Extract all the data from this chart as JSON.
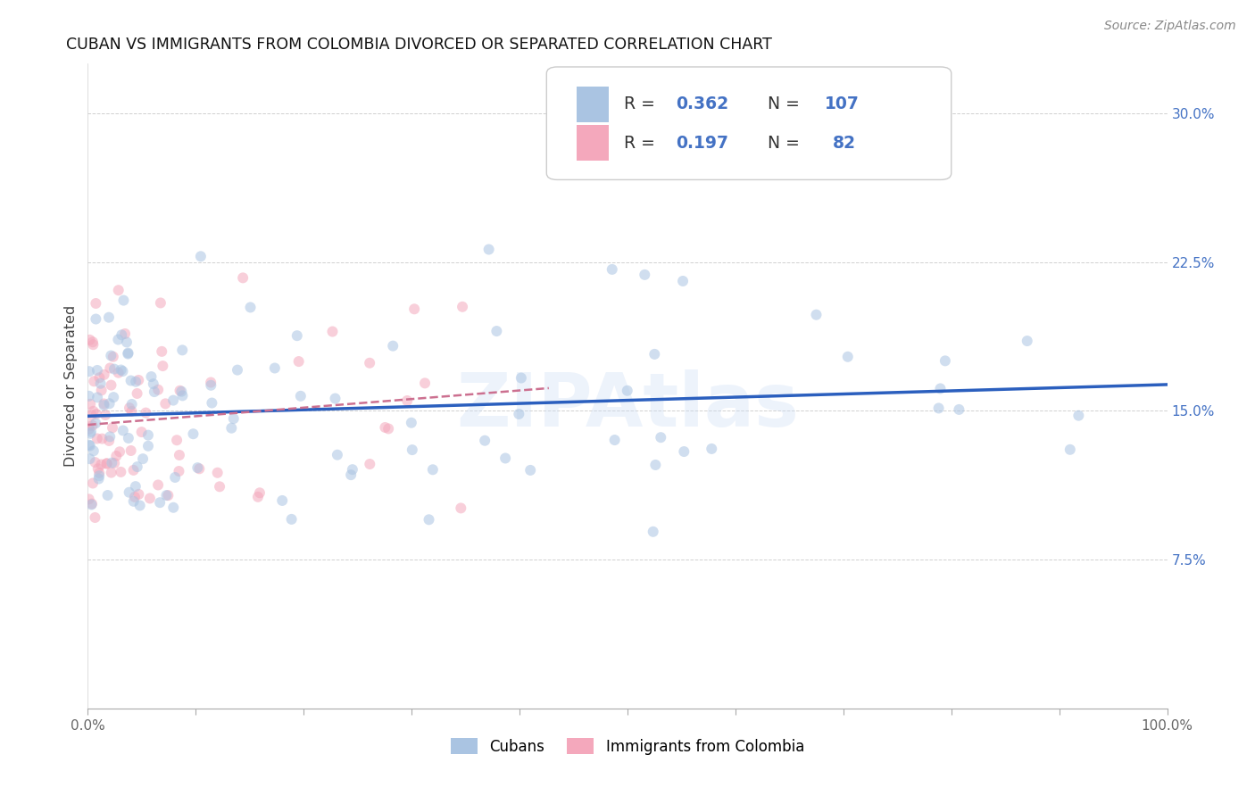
{
  "title": "CUBAN VS IMMIGRANTS FROM COLOMBIA DIVORCED OR SEPARATED CORRELATION CHART",
  "source": "Source: ZipAtlas.com",
  "ylabel": "Divorced or Separated",
  "legend_label1": "Cubans",
  "legend_label2": "Immigrants from Colombia",
  "R1": 0.362,
  "N1": 107,
  "R2": 0.197,
  "N2": 82,
  "color1": "#aac4e2",
  "color2": "#f4a8bc",
  "line_color1": "#2b5fbe",
  "line_color2": "#cc7090",
  "xlim": [
    0.0,
    1.0
  ],
  "ylim": [
    0.0,
    0.325
  ],
  "yticks": [
    0.0,
    0.075,
    0.15,
    0.225,
    0.3
  ],
  "ytick_labels": [
    "",
    "7.5%",
    "15.0%",
    "22.5%",
    "30.0%"
  ],
  "xtick_labels": [
    "0.0%",
    "",
    "",
    "",
    "",
    "",
    "",
    "",
    "",
    "",
    "100.0%"
  ],
  "background_color": "#ffffff",
  "watermark": "ZIPAtlas",
  "marker_size": 75,
  "alpha": 0.55,
  "seed": 12
}
